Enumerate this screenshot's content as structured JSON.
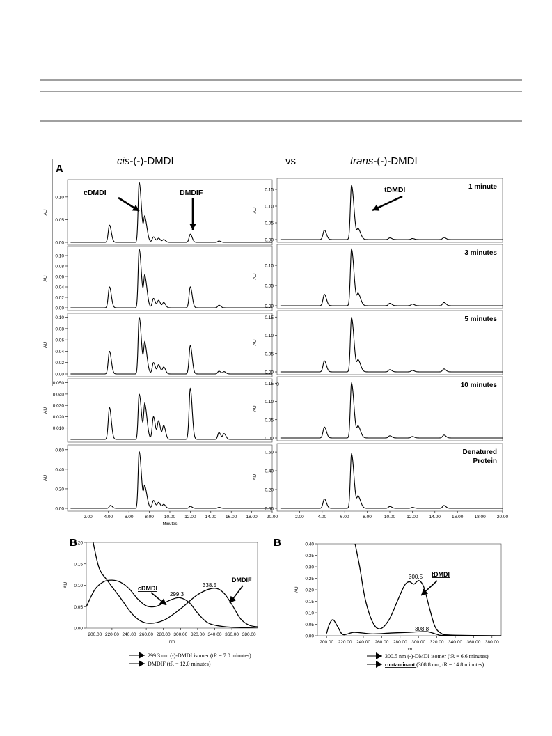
{
  "figure": {
    "panel_a_label": "A",
    "panel_b_left_label": "B",
    "panel_b_right_label": "B",
    "left_title_prefix": "cis",
    "left_title_suffix": "-(-)-DMDI",
    "middle_title": "vs",
    "right_title_prefix": "trans",
    "right_title_suffix": "-(-)-DMDI"
  },
  "chart_data": [
    {
      "type": "line",
      "panel": "A-left",
      "ylabel": "AU",
      "xlabel": "Minutes",
      "x_ticks": [
        "2.00",
        "4.00",
        "6.00",
        "8.00",
        "10.00",
        "12.00",
        "14.00",
        "16.00",
        "18.00",
        "20.00"
      ],
      "xlim": [
        0,
        20
      ],
      "annotations": {
        "cdmdi": "cDMDI",
        "dmdif": "DMDIF",
        "stray_mark": "0"
      },
      "subplots": [
        {
          "ylim": [
            0,
            0.132
          ],
          "y_ticks": [
            "0.00",
            "0.05",
            "0.10"
          ],
          "peaks": [
            [
              4.1,
              0.038
            ],
            [
              7.0,
              0.132
            ],
            [
              7.55,
              0.052
            ],
            [
              8.4,
              0.012
            ],
            [
              8.9,
              0.009
            ],
            [
              9.4,
              0.006
            ],
            [
              12.0,
              0.018
            ],
            [
              14.8,
              0.003
            ]
          ]
        },
        {
          "ylim": [
            0,
            0.112
          ],
          "y_ticks": [
            "0.00",
            "0.02",
            "0.04",
            "0.06",
            "0.08",
            "0.10"
          ],
          "peaks": [
            [
              4.1,
              0.04
            ],
            [
              7.0,
              0.112
            ],
            [
              7.55,
              0.058
            ],
            [
              8.4,
              0.018
            ],
            [
              8.9,
              0.014
            ],
            [
              9.4,
              0.01
            ],
            [
              12.0,
              0.04
            ],
            [
              14.8,
              0.005
            ]
          ]
        },
        {
          "ylim": [
            0,
            0.102
          ],
          "y_ticks": [
            "0.00",
            "0.02",
            "0.04",
            "0.06",
            "0.08",
            "0.10"
          ],
          "peaks": [
            [
              4.1,
              0.04
            ],
            [
              7.0,
              0.1
            ],
            [
              7.55,
              0.052
            ],
            [
              8.4,
              0.02
            ],
            [
              8.9,
              0.016
            ],
            [
              9.4,
              0.012
            ],
            [
              12.0,
              0.05
            ],
            [
              14.8,
              0.005
            ],
            [
              15.3,
              0.004
            ]
          ]
        },
        {
          "ylim": [
            0,
            0.051
          ],
          "y_ticks": [
            "0.010",
            "0.020",
            "0.030",
            "0.040",
            "0.050"
          ],
          "peaks": [
            [
              4.1,
              0.028
            ],
            [
              7.0,
              0.04
            ],
            [
              7.55,
              0.03
            ],
            [
              8.4,
              0.02
            ],
            [
              8.9,
              0.016
            ],
            [
              9.4,
              0.012
            ],
            [
              12.0,
              0.045
            ],
            [
              14.8,
              0.006
            ],
            [
              15.3,
              0.005
            ]
          ]
        },
        {
          "ylim": [
            0,
            0.62
          ],
          "y_ticks": [
            "0.00",
            "0.20",
            "0.40",
            "0.60"
          ],
          "peaks": [
            [
              4.2,
              0.03
            ],
            [
              7.0,
              0.58
            ],
            [
              7.55,
              0.21
            ],
            [
              8.4,
              0.08
            ],
            [
              8.9,
              0.06
            ],
            [
              9.4,
              0.04
            ],
            [
              12.0,
              0.02
            ],
            [
              14.8,
              0.01
            ]
          ]
        }
      ]
    },
    {
      "type": "line",
      "panel": "A-right",
      "ylabel": "AU",
      "xlabel": "",
      "x_ticks": [
        "2.00",
        "4.00",
        "6.00",
        "8.00",
        "10.00",
        "12.00",
        "14.00",
        "16.00",
        "18.00",
        "20.00"
      ],
      "xlim": [
        0,
        20
      ],
      "annotations": {
        "tdmdi": "tDMDI"
      },
      "subplots": [
        {
          "label": "1 minute",
          "ylim": [
            0,
            0.175
          ],
          "y_ticks": [
            "0.00",
            "0.05",
            "0.10",
            "0.15"
          ],
          "peaks": [
            [
              4.2,
              0.028
            ],
            [
              6.6,
              0.162
            ],
            [
              7.2,
              0.03
            ],
            [
              10.0,
              0.005
            ],
            [
              12.0,
              0.003
            ],
            [
              14.8,
              0.006
            ]
          ]
        },
        {
          "label": "3 minutes",
          "ylim": [
            0,
            0.145
          ],
          "y_ticks": [
            "0.00",
            "0.05",
            "0.10"
          ],
          "peaks": [
            [
              4.2,
              0.028
            ],
            [
              6.6,
              0.14
            ],
            [
              7.2,
              0.028
            ],
            [
              10.0,
              0.006
            ],
            [
              12.0,
              0.004
            ],
            [
              14.8,
              0.008
            ]
          ]
        },
        {
          "label": "5 minutes",
          "ylim": [
            0,
            0.16
          ],
          "y_ticks": [
            "0.00",
            "0.05",
            "0.10",
            "0.15"
          ],
          "peaks": [
            [
              4.2,
              0.03
            ],
            [
              6.6,
              0.148
            ],
            [
              7.2,
              0.03
            ],
            [
              10.0,
              0.006
            ],
            [
              12.0,
              0.004
            ],
            [
              14.8,
              0.008
            ]
          ]
        },
        {
          "label": "10 minutes",
          "ylim": [
            0,
            0.16
          ],
          "y_ticks": [
            "0.00",
            "0.05",
            "0.10",
            "0.15"
          ],
          "peaks": [
            [
              4.2,
              0.03
            ],
            [
              6.6,
              0.15
            ],
            [
              7.2,
              0.03
            ],
            [
              10.0,
              0.006
            ],
            [
              12.0,
              0.004
            ],
            [
              14.8,
              0.008
            ]
          ]
        },
        {
          "label_lines": [
            "Denatured",
            "Protein"
          ],
          "ylim": [
            0,
            0.66
          ],
          "y_ticks": [
            "0.00",
            "0.20",
            "0.40",
            "0.60"
          ],
          "peaks": [
            [
              4.2,
              0.1
            ],
            [
              6.6,
              0.58
            ],
            [
              7.2,
              0.12
            ],
            [
              10.0,
              0.02
            ],
            [
              12.0,
              0.01
            ],
            [
              14.8,
              0.03
            ]
          ]
        }
      ]
    },
    {
      "type": "line",
      "panel": "B-left",
      "ylabel": "AU",
      "xlabel": "nm",
      "xlim": [
        190,
        390
      ],
      "ylim": [
        0,
        0.2
      ],
      "y_ticks": [
        "0.00",
        "0.05",
        "0.10",
        "0.15",
        "0.20"
      ],
      "x_ticks": [
        "200.00",
        "220.00",
        "240.00",
        "260.00",
        "280.00",
        "300.00",
        "320.00",
        "340.00",
        "360.00",
        "380.00"
      ],
      "annotations": {
        "cdmdi": "cDMDI",
        "dmdif": "DMDIF",
        "peak_299": "299.3",
        "peak_338": "338.5"
      },
      "series": [
        {
          "name": "299.3 nm (-)-DMDI isomer (tR = 7.0 minutes)",
          "points": [
            [
              190,
              0.05
            ],
            [
              200,
              0.09
            ],
            [
              210,
              0.108
            ],
            [
              220,
              0.112
            ],
            [
              230,
              0.107
            ],
            [
              240,
              0.092
            ],
            [
              250,
              0.068
            ],
            [
              260,
              0.052
            ],
            [
              270,
              0.05
            ],
            [
              280,
              0.058
            ],
            [
              290,
              0.067
            ],
            [
              299.3,
              0.071
            ],
            [
              310,
              0.06
            ],
            [
              320,
              0.035
            ],
            [
              330,
              0.015
            ],
            [
              340,
              0.007
            ],
            [
              360,
              0.002
            ],
            [
              390,
              0.0
            ]
          ]
        },
        {
          "name": "DMDIF (tR = 12.0 minutes)",
          "points": [
            [
              198,
              0.2
            ],
            [
              205,
              0.14
            ],
            [
              215,
              0.11
            ],
            [
              230,
              0.07
            ],
            [
              245,
              0.03
            ],
            [
              260,
              0.012
            ],
            [
              280,
              0.018
            ],
            [
              300,
              0.045
            ],
            [
              320,
              0.078
            ],
            [
              338.5,
              0.093
            ],
            [
              350,
              0.083
            ],
            [
              360,
              0.055
            ],
            [
              370,
              0.022
            ],
            [
              380,
              0.007
            ],
            [
              390,
              0.003
            ]
          ]
        }
      ],
      "legend": {
        "line1": "299.3 nm (-)-DMDI isomer",
        "line1_t": "(tR = 7.0 minutes)",
        "line2": "DMDIF",
        "line2_t": "(tR = 12.0 minutes)"
      }
    },
    {
      "type": "line",
      "panel": "B-right",
      "ylabel": "AU",
      "xlabel": "nm",
      "xlim": [
        190,
        390
      ],
      "ylim": [
        0,
        0.4
      ],
      "y_ticks": [
        "0.00",
        "0.05",
        "0.10",
        "0.15",
        "0.20",
        "0.25",
        "0.30",
        "0.35",
        "0.40"
      ],
      "x_ticks": [
        "200.00",
        "220.00",
        "240.00",
        "260.00",
        "280.00",
        "300.00",
        "320.00",
        "340.00",
        "360.00",
        "380.00"
      ],
      "annotations": {
        "tdmdi": "tDMDI",
        "peak_300": "300.5",
        "peak_308": "308.8"
      },
      "series": [
        {
          "name": "300.5 nm (-)-DMDI isomer (tR = 6.6 minutes)",
          "points": [
            [
              230,
              0.42
            ],
            [
              236,
              0.3
            ],
            [
              242,
              0.16
            ],
            [
              250,
              0.06
            ],
            [
              258,
              0.03
            ],
            [
              268,
              0.07
            ],
            [
              278,
              0.16
            ],
            [
              285,
              0.22
            ],
            [
              290,
              0.235
            ],
            [
              295,
              0.225
            ],
            [
              300.5,
              0.24
            ],
            [
              306,
              0.21
            ],
            [
              312,
              0.12
            ],
            [
              318,
              0.04
            ],
            [
              325,
              0.01
            ],
            [
              335,
              0.003
            ],
            [
              390,
              0.0
            ]
          ]
        },
        {
          "name": "contaminant (308.8 nm; tR = 14.8 minutes)",
          "points": [
            [
              200,
              0.01
            ],
            [
              203,
              0.05
            ],
            [
              207,
              0.07
            ],
            [
              212,
              0.04
            ],
            [
              218,
              0.005
            ],
            [
              230,
              0.015
            ],
            [
              250,
              0.008
            ],
            [
              270,
              0.012
            ],
            [
              290,
              0.015
            ],
            [
              308.8,
              0.018
            ],
            [
              320,
              0.006
            ],
            [
              330,
              0.001
            ],
            [
              390,
              0.0
            ]
          ]
        }
      ],
      "legend": {
        "line1": "300.5 nm (-)-DMDI isomer",
        "line1_t": "(tR = 6.6 minutes)",
        "line2": "contaminant",
        "line2_t": "(308.8 nm; tR = 14.8 minutes)"
      }
    }
  ]
}
